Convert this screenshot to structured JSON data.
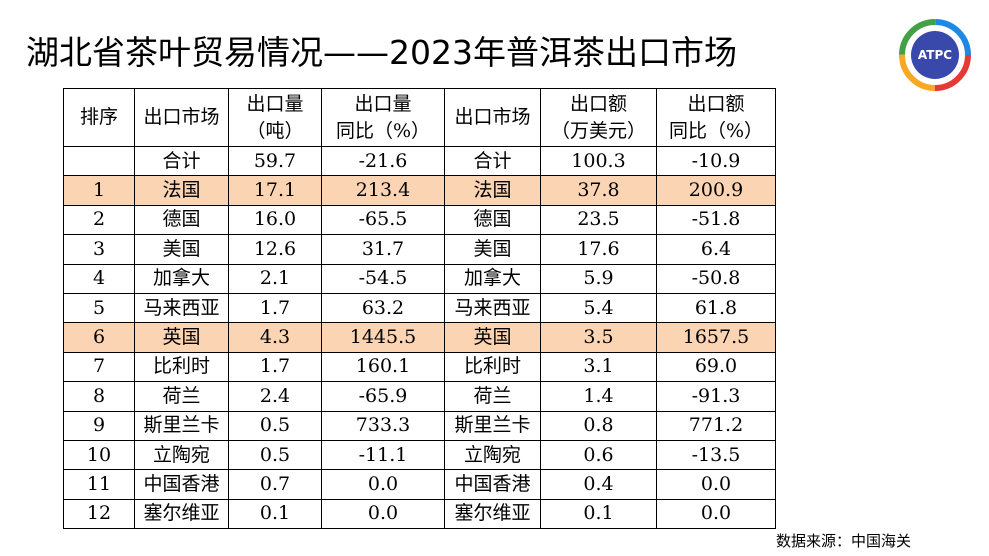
{
  "header": {
    "title": "湖北省茶叶贸易情况——2023年普洱茶出口市场",
    "logo": "ATPC"
  },
  "table": {
    "columns": [
      [
        "排序"
      ],
      [
        "出口市场"
      ],
      [
        "出口量",
        "（吨）"
      ],
      [
        "出口量",
        "同比（%）"
      ],
      [
        "出口市场"
      ],
      [
        "出口额",
        "（万美元）"
      ],
      [
        "出口额",
        "同比（%）"
      ]
    ],
    "total": {
      "market": "合计",
      "volume": "59.7",
      "volume_yoy": "-21.6",
      "value": "100.3",
      "value_yoy": "-10.9"
    },
    "rows": [
      {
        "rank": "1",
        "market": "法国",
        "volume": "17.1",
        "volume_yoy": "213.4",
        "value": "37.8",
        "value_yoy": "200.9",
        "highlight": true
      },
      {
        "rank": "2",
        "market": "德国",
        "volume": "16.0",
        "volume_yoy": "-65.5",
        "value": "23.5",
        "value_yoy": "-51.8"
      },
      {
        "rank": "3",
        "market": "美国",
        "volume": "12.6",
        "volume_yoy": "31.7",
        "value": "17.6",
        "value_yoy": "6.4"
      },
      {
        "rank": "4",
        "market": "加拿大",
        "volume": "2.1",
        "volume_yoy": "-54.5",
        "value": "5.9",
        "value_yoy": "-50.8"
      },
      {
        "rank": "5",
        "market": "马来西亚",
        "volume": "1.7",
        "volume_yoy": "63.2",
        "value": "5.4",
        "value_yoy": "61.8"
      },
      {
        "rank": "6",
        "market": "英国",
        "volume": "4.3",
        "volume_yoy": "1445.5",
        "value": "3.5",
        "value_yoy": "1657.5",
        "highlight": true
      },
      {
        "rank": "7",
        "market": "比利时",
        "volume": "1.7",
        "volume_yoy": "160.1",
        "value": "3.1",
        "value_yoy": "69.0"
      },
      {
        "rank": "8",
        "market": "荷兰",
        "volume": "2.4",
        "volume_yoy": "-65.9",
        "value": "1.4",
        "value_yoy": "-91.3"
      },
      {
        "rank": "9",
        "market": "斯里兰卡",
        "volume": "0.5",
        "volume_yoy": "733.3",
        "value": "0.8",
        "value_yoy": "771.2"
      },
      {
        "rank": "10",
        "market": "立陶宛",
        "volume": "0.5",
        "volume_yoy": "-11.1",
        "value": "0.6",
        "value_yoy": "-13.5"
      },
      {
        "rank": "11",
        "market": "中国香港",
        "volume": "0.7",
        "volume_yoy": "0.0",
        "value": "0.4",
        "value_yoy": "0.0"
      },
      {
        "rank": "12",
        "market": "塞尔维亚",
        "volume": "0.1",
        "volume_yoy": "0.0",
        "value": "0.1",
        "value_yoy": "0.0"
      }
    ]
  },
  "footer": {
    "source": "数据来源：中国海关"
  }
}
